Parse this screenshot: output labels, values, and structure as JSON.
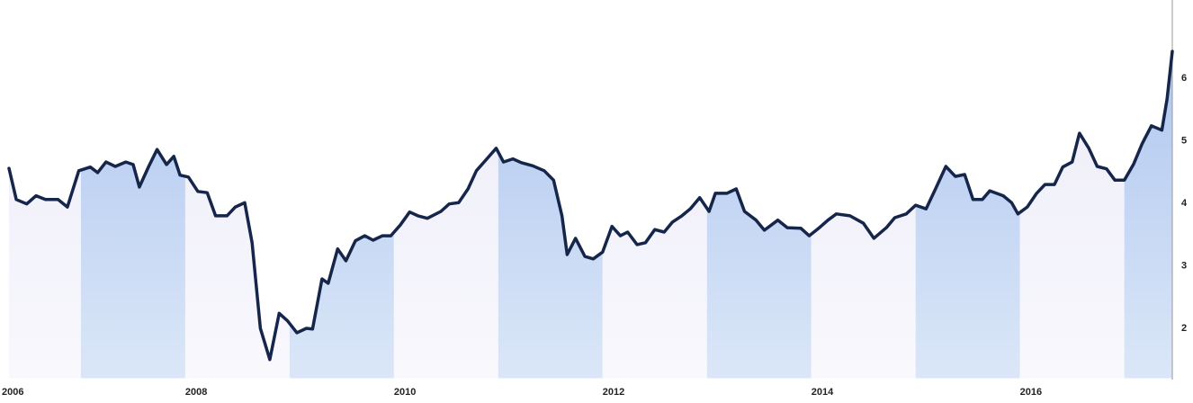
{
  "chart_data": {
    "type": "line",
    "x": [
      2006.31,
      2006.38,
      2006.48,
      2006.57,
      2006.66,
      2006.78,
      2006.87,
      2006.98,
      2007.09,
      2007.16,
      2007.24,
      2007.33,
      2007.43,
      2007.5,
      2007.56,
      2007.65,
      2007.73,
      2007.82,
      2007.89,
      2007.95,
      2008.03,
      2008.12,
      2008.21,
      2008.29,
      2008.4,
      2008.48,
      2008.57,
      2008.64,
      2008.72,
      2008.81,
      2008.9,
      2008.98,
      2009.07,
      2009.16,
      2009.22,
      2009.31,
      2009.37,
      2009.46,
      2009.54,
      2009.63,
      2009.72,
      2009.8,
      2009.89,
      2009.97,
      2010.06,
      2010.15,
      2010.23,
      2010.32,
      2010.45,
      2010.53,
      2010.62,
      2010.71,
      2010.79,
      2010.88,
      2010.98,
      2011.05,
      2011.14,
      2011.22,
      2011.33,
      2011.44,
      2011.53,
      2011.61,
      2011.66,
      2011.74,
      2011.83,
      2011.91,
      2012.0,
      2012.09,
      2012.17,
      2012.24,
      2012.33,
      2012.41,
      2012.5,
      2012.59,
      2012.67,
      2012.76,
      2012.84,
      2012.93,
      2013.02,
      2013.08,
      2013.19,
      2013.28,
      2013.36,
      2013.47,
      2013.55,
      2013.68,
      2013.77,
      2013.9,
      2013.98,
      2014.07,
      2014.16,
      2014.24,
      2014.37,
      2014.5,
      2014.6,
      2014.72,
      2014.8,
      2014.91,
      2015.0,
      2015.1,
      2015.19,
      2015.29,
      2015.38,
      2015.47,
      2015.55,
      2015.64,
      2015.71,
      2015.84,
      2015.92,
      2015.98,
      2016.07,
      2016.16,
      2016.24,
      2016.33,
      2016.41,
      2016.5,
      2016.57,
      2016.66,
      2016.74,
      2016.83,
      2016.91,
      2017.0,
      2017.09,
      2017.17,
      2017.26,
      2017.36,
      2017.41,
      2017.46
    ],
    "values": [
      4.56,
      4.06,
      3.99,
      4.12,
      4.06,
      4.06,
      3.94,
      4.52,
      4.58,
      4.49,
      4.66,
      4.59,
      4.66,
      4.62,
      4.26,
      4.59,
      4.86,
      4.62,
      4.75,
      4.45,
      4.42,
      4.19,
      4.17,
      3.8,
      3.8,
      3.94,
      4.01,
      3.37,
      2.0,
      1.5,
      2.24,
      2.12,
      1.93,
      2.0,
      1.99,
      2.79,
      2.72,
      3.27,
      3.08,
      3.4,
      3.48,
      3.41,
      3.48,
      3.48,
      3.65,
      3.86,
      3.8,
      3.76,
      3.87,
      3.99,
      4.01,
      4.23,
      4.52,
      4.69,
      4.88,
      4.66,
      4.71,
      4.65,
      4.6,
      4.52,
      4.37,
      3.8,
      3.18,
      3.44,
      3.15,
      3.11,
      3.22,
      3.63,
      3.48,
      3.54,
      3.34,
      3.37,
      3.58,
      3.54,
      3.7,
      3.8,
      3.91,
      4.09,
      3.87,
      4.16,
      4.16,
      4.23,
      3.87,
      3.73,
      3.57,
      3.73,
      3.61,
      3.6,
      3.48,
      3.6,
      3.73,
      3.83,
      3.8,
      3.68,
      3.44,
      3.61,
      3.77,
      3.83,
      3.97,
      3.91,
      4.23,
      4.59,
      4.43,
      4.46,
      4.06,
      4.06,
      4.2,
      4.12,
      4.01,
      3.83,
      3.94,
      4.16,
      4.3,
      4.3,
      4.58,
      4.66,
      5.12,
      4.88,
      4.59,
      4.55,
      4.37,
      4.37,
      4.63,
      4.95,
      5.24,
      5.17,
      5.67,
      6.43
    ],
    "color": "#15264a",
    "xlim": [
      2006,
      2017.46
    ],
    "xticks": [
      2006,
      2008,
      2010,
      2012,
      2014,
      2016
    ],
    "ylim": [
      1.2,
      7.1
    ],
    "yticks": [
      2,
      3,
      4,
      5,
      6
    ],
    "grid": false
  }
}
